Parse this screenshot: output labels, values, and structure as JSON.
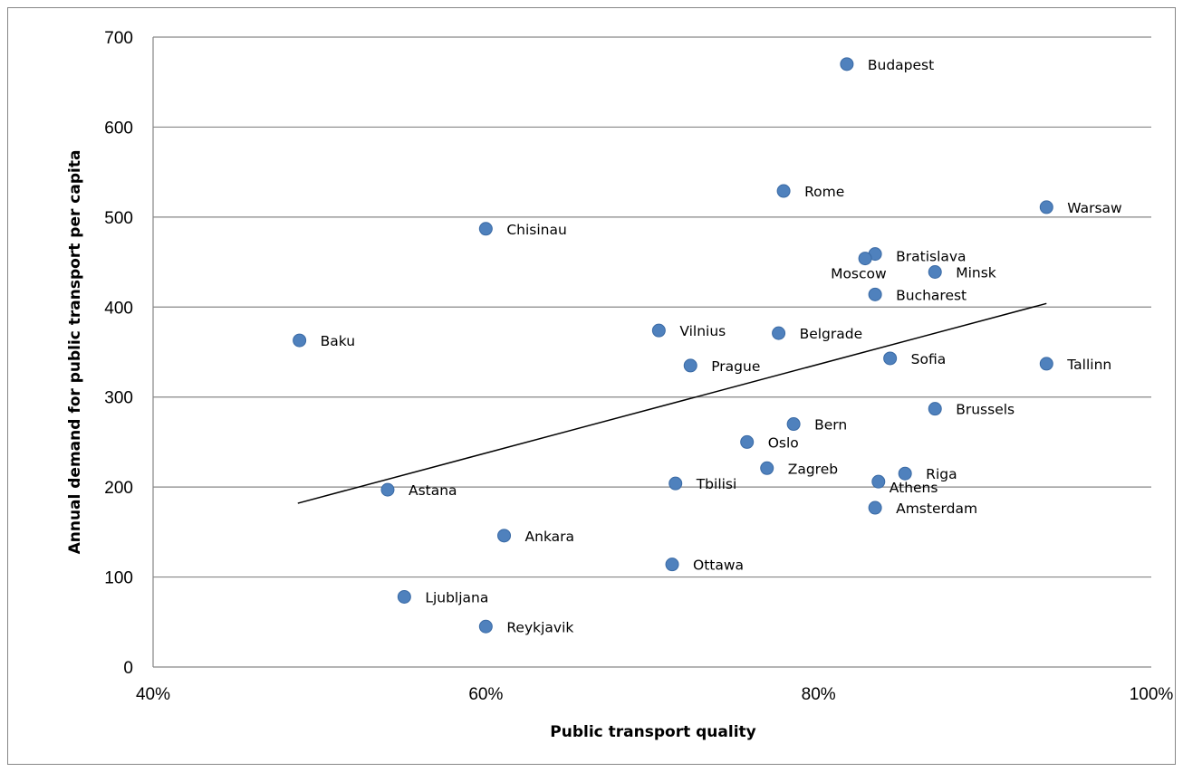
{
  "chart_data": {
    "type": "scatter",
    "title": "",
    "xlabel": "Public transport quality",
    "ylabel": "Annual demand for public transport per capita",
    "xlim": [
      0.4,
      1.0
    ],
    "ylim": [
      0,
      700
    ],
    "x_ticks": [
      0.4,
      0.6,
      0.8,
      1.0
    ],
    "x_tick_labels": [
      "40%",
      "60%",
      "80%",
      "100%"
    ],
    "y_ticks": [
      0,
      100,
      200,
      300,
      400,
      500,
      600,
      700
    ],
    "y_tick_labels": [
      "0",
      "100",
      "200",
      "300",
      "400",
      "500",
      "600",
      "700"
    ],
    "grid": "horizontal",
    "legend": "none",
    "colors": {
      "marker": "#4f81bd",
      "marker_edge": "#3a6aa5",
      "gridline": "#868686",
      "trendline": "#000000"
    },
    "trendline": {
      "type": "linear",
      "from": [
        0.487,
        182
      ],
      "to": [
        0.937,
        404
      ]
    },
    "points": [
      {
        "label": "Budapest",
        "x": 0.817,
        "y": 670
      },
      {
        "label": "Rome",
        "x": 0.779,
        "y": 529
      },
      {
        "label": "Warsaw",
        "x": 0.937,
        "y": 511
      },
      {
        "label": "Chisinau",
        "x": 0.6,
        "y": 487
      },
      {
        "label": "Bratislava",
        "x": 0.834,
        "y": 459
      },
      {
        "label": "Moscow",
        "x": 0.828,
        "y": 454
      },
      {
        "label": "Minsk",
        "x": 0.87,
        "y": 439
      },
      {
        "label": "Bucharest",
        "x": 0.834,
        "y": 414
      },
      {
        "label": "Vilnius",
        "x": 0.704,
        "y": 374
      },
      {
        "label": "Belgrade",
        "x": 0.776,
        "y": 371
      },
      {
        "label": "Baku",
        "x": 0.488,
        "y": 363
      },
      {
        "label": "Sofia",
        "x": 0.843,
        "y": 343
      },
      {
        "label": "Tallinn",
        "x": 0.937,
        "y": 337
      },
      {
        "label": "Prague",
        "x": 0.723,
        "y": 335
      },
      {
        "label": "Brussels",
        "x": 0.87,
        "y": 287
      },
      {
        "label": "Bern",
        "x": 0.785,
        "y": 270
      },
      {
        "label": "Oslo",
        "x": 0.757,
        "y": 250
      },
      {
        "label": "Zagreb",
        "x": 0.769,
        "y": 221
      },
      {
        "label": "Riga",
        "x": 0.852,
        "y": 215
      },
      {
        "label": "Athens",
        "x": 0.836,
        "y": 206
      },
      {
        "label": "Tbilisi",
        "x": 0.714,
        "y": 204
      },
      {
        "label": "Astana",
        "x": 0.541,
        "y": 197
      },
      {
        "label": "Amsterdam",
        "x": 0.834,
        "y": 177
      },
      {
        "label": "Ankara",
        "x": 0.611,
        "y": 146
      },
      {
        "label": "Ottawa",
        "x": 0.712,
        "y": 114
      },
      {
        "label": "Ljubljana",
        "x": 0.551,
        "y": 78
      },
      {
        "label": "Reykjavik",
        "x": 0.6,
        "y": 45
      }
    ]
  }
}
